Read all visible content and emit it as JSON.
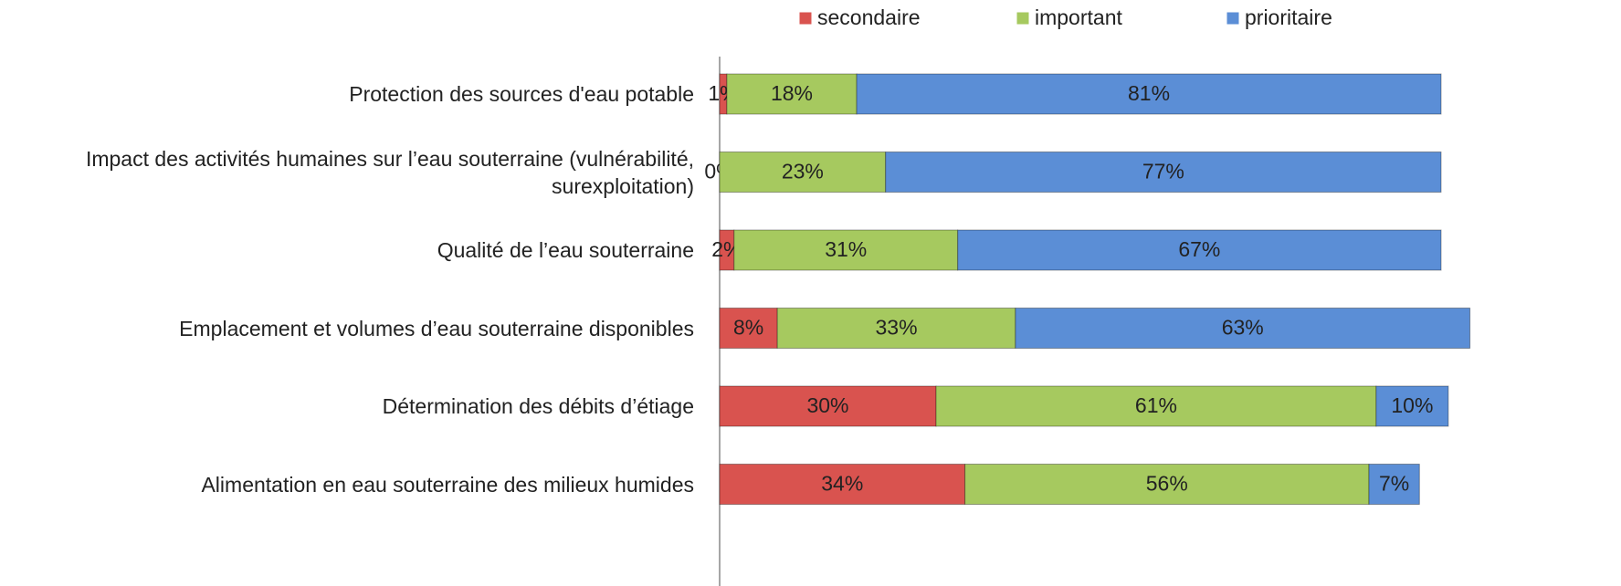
{
  "chart_data": {
    "type": "stacked_bar_horizontal",
    "categories": [
      "Protection des sources d'eau potable",
      "Impact des activités humaines sur l’eau souterraine (vulnérabilité, surexploitation)",
      "Qualité de l’eau souterraine",
      "Emplacement et volumes d’eau souterraine disponibles",
      "Détermination des débits d’étiage",
      "Alimentation en eau souterraine des milieux humides"
    ],
    "series": [
      {
        "name": "secondaire",
        "color": "#d9534f",
        "values": [
          1,
          0,
          2,
          8,
          30,
          34
        ],
        "value_labels": [
          "1%",
          "0%",
          "2%",
          "8%",
          "30%",
          "34%"
        ]
      },
      {
        "name": "important",
        "color": "#a6c95f",
        "values": [
          18,
          23,
          31,
          33,
          61,
          56
        ],
        "value_labels": [
          "18%",
          "23%",
          "31%",
          "33%",
          "61%",
          "56%"
        ]
      },
      {
        "name": "prioritaire",
        "color": "#5b8ed6",
        "values": [
          81,
          77,
          67,
          63,
          10,
          7
        ],
        "value_labels": [
          "81%",
          "77%",
          "67%",
          "63%",
          "10%",
          "7%"
        ]
      }
    ],
    "legend": "top"
  }
}
